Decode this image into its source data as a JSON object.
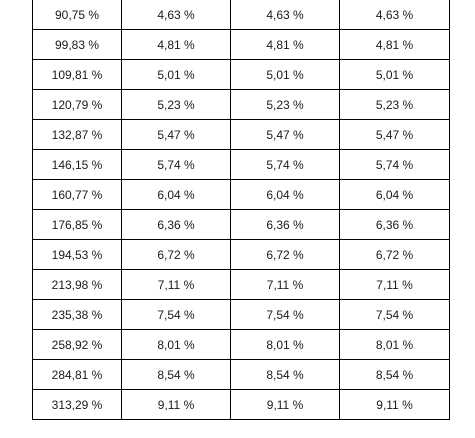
{
  "table": {
    "rows": [
      [
        "90,75 %",
        "4,63 %",
        "4,63 %",
        "4,63 %"
      ],
      [
        "99,83 %",
        "4,81 %",
        "4,81 %",
        "4,81 %"
      ],
      [
        "109,81 %",
        "5,01 %",
        "5,01 %",
        "5,01 %"
      ],
      [
        "120,79 %",
        "5,23 %",
        "5,23 %",
        "5,23 %"
      ],
      [
        "132,87 %",
        "5,47 %",
        "5,47 %",
        "5,47 %"
      ],
      [
        "146,15 %",
        "5,74 %",
        "5,74 %",
        "5,74 %"
      ],
      [
        "160,77 %",
        "6,04 %",
        "6,04 %",
        "6,04 %"
      ],
      [
        "176,85 %",
        "6,36 %",
        "6,36 %",
        "6,36 %"
      ],
      [
        "194,53 %",
        "6,72 %",
        "6,72 %",
        "6,72 %"
      ],
      [
        "213,98 %",
        "7,11 %",
        "7,11 %",
        "7,11 %"
      ],
      [
        "235,38 %",
        "7,54 %",
        "7,54 %",
        "7,54 %"
      ],
      [
        "258,92 %",
        "8,01 %",
        "8,01 %",
        "8,01 %"
      ],
      [
        "284,81 %",
        "8,54 %",
        "8,54 %",
        "8,54 %"
      ],
      [
        "313,29 %",
        "9,11 %",
        "9,11 %",
        "9,11 %"
      ]
    ]
  }
}
